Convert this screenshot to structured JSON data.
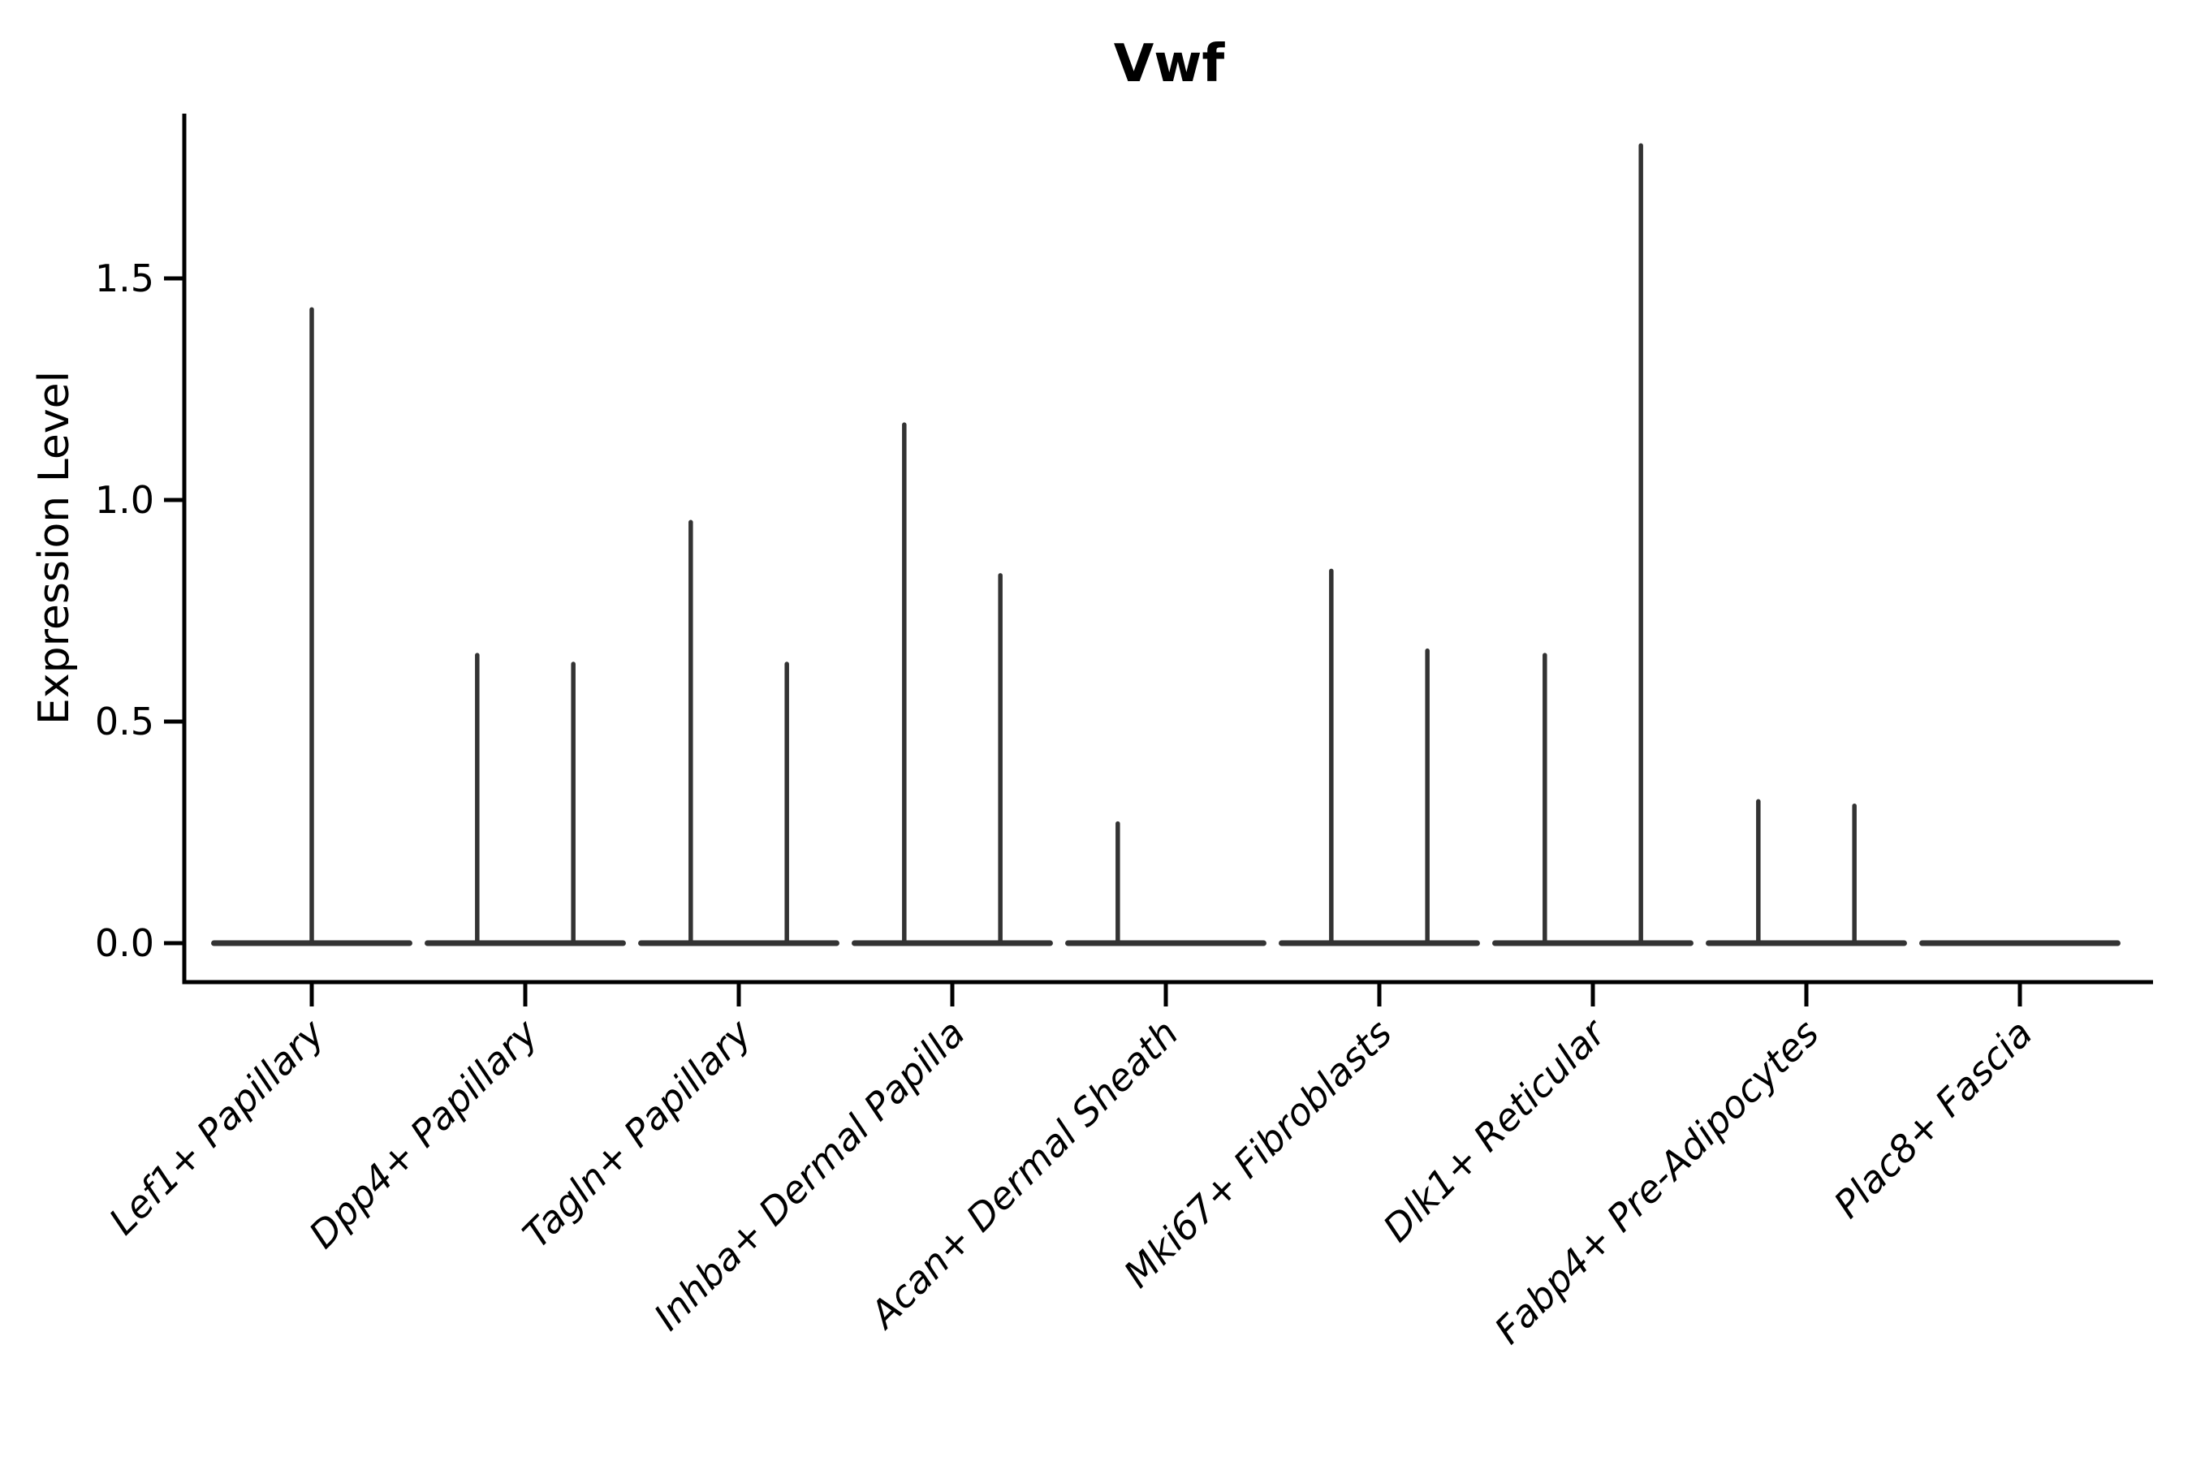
{
  "chart_data": {
    "type": "violin",
    "title": "Vwf",
    "xlabel": "",
    "ylabel": "Expression Level",
    "ytick_labels": [
      "0.0",
      "0.5",
      "1.0",
      "1.5"
    ],
    "ytick_values": [
      0.0,
      0.5,
      1.0,
      1.5
    ],
    "ylim": [
      -0.088,
      1.872
    ],
    "grid": false,
    "legend": "none",
    "categories": [
      "Lef1+ Papillary",
      "Dpp4+ Papillary",
      "Tagln+ Papillary",
      "Inhba+ Dermal Papilla",
      "Acan+ Dermal Sheath",
      "Mki67+ Fibroblasts",
      "Dlk1+ Reticular",
      "Fabp4+ Pre-Adipocytes",
      "Plac8+ Fascia"
    ],
    "violins": [
      {
        "category": "Lef1+ Papillary",
        "base_halfwidth": 0.458,
        "spikes": [
          {
            "offset": 0.0,
            "max": 1.43
          }
        ]
      },
      {
        "category": "Dpp4+ Papillary",
        "base_halfwidth": 0.458,
        "spikes": [
          {
            "offset": -0.225,
            "max": 0.65
          },
          {
            "offset": 0.225,
            "max": 0.63
          }
        ]
      },
      {
        "category": "Tagln+ Papillary",
        "base_halfwidth": 0.458,
        "spikes": [
          {
            "offset": -0.225,
            "max": 0.95
          },
          {
            "offset": 0.225,
            "max": 0.63
          }
        ]
      },
      {
        "category": "Inhba+ Dermal Papilla",
        "base_halfwidth": 0.458,
        "spikes": [
          {
            "offset": -0.225,
            "max": 1.17
          },
          {
            "offset": 0.225,
            "max": 0.83
          }
        ]
      },
      {
        "category": "Acan+ Dermal Sheath",
        "base_halfwidth": 0.458,
        "spikes": [
          {
            "offset": -0.225,
            "max": 0.27
          }
        ]
      },
      {
        "category": "Mki67+ Fibroblasts",
        "base_halfwidth": 0.458,
        "spikes": [
          {
            "offset": -0.225,
            "max": 0.84
          },
          {
            "offset": 0.225,
            "max": 0.66
          }
        ]
      },
      {
        "category": "Dlk1+ Reticular",
        "base_halfwidth": 0.458,
        "spikes": [
          {
            "offset": -0.225,
            "max": 0.65
          },
          {
            "offset": 0.225,
            "max": 1.8
          }
        ]
      },
      {
        "category": "Fabp4+ Pre-Adipocytes",
        "base_halfwidth": 0.458,
        "spikes": [
          {
            "offset": -0.225,
            "max": 0.32
          },
          {
            "offset": 0.225,
            "max": 0.31
          }
        ]
      },
      {
        "category": "Plac8+ Fascia",
        "base_halfwidth": 0.458,
        "spikes": []
      }
    ],
    "colors": {
      "violin": "#333333",
      "axis": "#000000",
      "background": "#ffffff"
    }
  }
}
